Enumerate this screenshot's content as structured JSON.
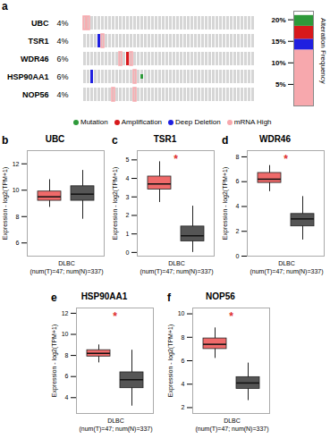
{
  "chart_data": [
    {
      "type": "oncoprint",
      "panel": "a",
      "categories": [
        "UBC",
        "TSR1",
        "WDR46",
        "HSP90AA1",
        "NOP56"
      ],
      "values": [
        4,
        4,
        6,
        6,
        4
      ],
      "value_labels": [
        "4%",
        "4%",
        "6%",
        "6%",
        "4%"
      ],
      "n_samples": 48,
      "alterations": [
        [
          {
            "sample": 0,
            "type": "mRNA High"
          },
          {
            "sample": 1,
            "type": "mRNA High"
          }
        ],
        [
          {
            "sample": 4,
            "type": "Deep Deletion"
          },
          {
            "sample": 5,
            "type": "mRNA High"
          }
        ],
        [
          {
            "sample": 10,
            "type": "mRNA High"
          },
          {
            "sample": 12,
            "type": "Amplification"
          },
          {
            "sample": 13,
            "type": "mRNA High"
          }
        ],
        [
          {
            "sample": 2,
            "type": "Deep Deletion"
          },
          {
            "sample": 14,
            "type": "mRNA High"
          },
          {
            "sample": 16,
            "type": "Mutation"
          }
        ],
        [
          {
            "sample": 8,
            "type": "mRNA High"
          },
          {
            "sample": 14,
            "type": "mRNA High"
          }
        ]
      ],
      "legend": "bottom"
    },
    {
      "type": "bar",
      "stacked": true,
      "y_label": "Alteration Frequency",
      "ylim": [
        0,
        22
      ],
      "yticks": [
        {
          "value": 5,
          "label": "5%"
        },
        {
          "value": 10,
          "label": "10%"
        },
        {
          "value": 15,
          "label": "15%"
        },
        {
          "value": 20,
          "label": "20%"
        }
      ],
      "series": [
        {
          "name": "Mutation",
          "color": "#2e9a3a",
          "marker": "small",
          "values": [
            2.5
          ]
        },
        {
          "name": "Amplification",
          "color": "#d7191c",
          "marker": "square",
          "values": [
            3
          ]
        },
        {
          "name": "Deep Deletion",
          "color": "#1f1fe0",
          "marker": "square",
          "values": [
            2.5
          ]
        },
        {
          "name": "mRNA High",
          "color": "#f7a8ad",
          "marker": "outline",
          "values": [
            13
          ]
        }
      ]
    },
    {
      "type": "box",
      "panel": "b",
      "title": "UBC",
      "y_label": "Expression - log2(TPM+1)",
      "x_label": "DLBC",
      "subtitle": "(num(T)=47; num(N)=337)",
      "ylim": [
        5,
        13
      ],
      "yticks": [
        6,
        8,
        10,
        12
      ],
      "groups": [
        {
          "color": "#ef6a6a",
          "whisker_low": 8.7,
          "q1": 9.2,
          "median": 9.5,
          "q3": 9.9,
          "whisker_high": 10.8
        },
        {
          "color": "#555555",
          "whisker_low": 7.8,
          "q1": 9.2,
          "median": 9.7,
          "q3": 10.3,
          "whisker_high": 11.5
        }
      ]
    },
    {
      "type": "box",
      "panel": "c",
      "title": "TSR1",
      "y_label": "Expression - log2(TPM+1)",
      "x_label": "DLBC",
      "subtitle": "(num(T)=47; num(N)=337)",
      "annotation": "*",
      "ylim": [
        -0.2,
        5.5
      ],
      "yticks": [
        0,
        1,
        2,
        3,
        4,
        5
      ],
      "groups": [
        {
          "color": "#ef6a6a",
          "whisker_low": 2.7,
          "q1": 3.4,
          "median": 3.7,
          "q3": 4.1,
          "whisker_high": 4.9
        },
        {
          "color": "#555555",
          "whisker_low": 0,
          "q1": 0.6,
          "median": 0.9,
          "q3": 1.4,
          "whisker_high": 2.5
        }
      ]
    },
    {
      "type": "box",
      "panel": "d",
      "title": "WDR46",
      "y_label": "Expression - log2(TPM+1)",
      "x_label": "DLBC",
      "subtitle": "(num(T)=47; num(N)=337)",
      "annotation": "*",
      "ylim": [
        0,
        8.5
      ],
      "yticks": [
        0,
        2,
        4,
        6,
        8
      ],
      "groups": [
        {
          "color": "#ef6a6a",
          "whisker_low": 5.2,
          "q1": 5.9,
          "median": 6.2,
          "q3": 6.7,
          "whisker_high": 7.3
        },
        {
          "color": "#555555",
          "whisker_low": 1.3,
          "q1": 2.4,
          "median": 3.0,
          "q3": 3.4,
          "whisker_high": 4.8
        }
      ]
    },
    {
      "type": "box",
      "panel": "e",
      "title": "HSP90AA1",
      "y_label": "Expression - log2(TPM+1)",
      "x_label": "DLBC",
      "subtitle": "(num(T)=47; num(N)=337)",
      "annotation": "*",
      "ylim": [
        2.5,
        12.5
      ],
      "yticks": [
        4,
        6,
        8,
        10,
        12
      ],
      "groups": [
        {
          "color": "#ef6a6a",
          "whisker_low": 7.3,
          "q1": 7.9,
          "median": 8.2,
          "q3": 8.5,
          "whisker_high": 9.0
        },
        {
          "color": "#555555",
          "whisker_low": 3.2,
          "q1": 4.9,
          "median": 5.7,
          "q3": 6.4,
          "whisker_high": 8.5
        }
      ]
    },
    {
      "type": "box",
      "panel": "f",
      "title": "NOP56",
      "y_label": "Expression - log2(TPM+1)",
      "x_label": "DLBC",
      "subtitle": "(num(T)=47; num(N)=337)",
      "annotation": "*",
      "ylim": [
        1.5,
        10.5
      ],
      "yticks": [
        2,
        4,
        6,
        8,
        10
      ],
      "groups": [
        {
          "color": "#ef6a6a",
          "whisker_low": 6.2,
          "q1": 7.0,
          "median": 7.4,
          "q3": 7.9,
          "whisker_high": 8.8
        },
        {
          "color": "#555555",
          "whisker_low": 2.6,
          "q1": 3.6,
          "median": 4.1,
          "q3": 4.6,
          "whisker_high": 5.8
        }
      ]
    }
  ]
}
